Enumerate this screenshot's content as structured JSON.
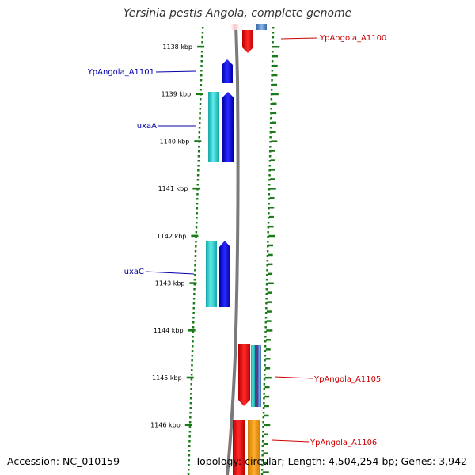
{
  "title": "Yersinia pestis Angola, complete genome",
  "footer": {
    "accession": "Accession: NC_010159",
    "topology": "Topology: circular; Length: 4,504,254 bp; Genes: 3,942"
  },
  "colors": {
    "forward_label": "#cc0000",
    "reverse_label": "#0000aa",
    "tick": "#1a7a1a",
    "backbone": "#888888",
    "gene_blue": "#0000ee",
    "gene_cyan": "#20c8c8",
    "gene_red": "#ee0000",
    "gene_orange": "#f59a10",
    "gene_steelblue": "#5a8ac8",
    "gene_purple": "#5a3a8a"
  },
  "scale": {
    "unit": "kbp",
    "ticks": [
      {
        "kbp": 1138,
        "label": "1138 kbp"
      },
      {
        "kbp": 1139,
        "label": "1139 kbp"
      },
      {
        "kbp": 1140,
        "label": "1140 kbp"
      },
      {
        "kbp": 1141,
        "label": "1141 kbp"
      },
      {
        "kbp": 1142,
        "label": "1142 kbp"
      },
      {
        "kbp": 1143,
        "label": "1143 kbp"
      },
      {
        "kbp": 1144,
        "label": "1144 kbp"
      },
      {
        "kbp": 1145,
        "label": "1145 kbp"
      },
      {
        "kbp": 1146,
        "label": "1146 kbp"
      }
    ]
  },
  "gene_labels": [
    {
      "text": "YpAngola_A1100",
      "strand": "forward"
    },
    {
      "text": "YpAngola_A1101",
      "strand": "reverse"
    },
    {
      "text": "uxaA",
      "strand": "reverse"
    },
    {
      "text": "uxaC",
      "strand": "reverse"
    },
    {
      "text": "YpAngola_A1105",
      "strand": "forward"
    },
    {
      "text": "YpAngola_A1106",
      "strand": "forward"
    }
  ]
}
